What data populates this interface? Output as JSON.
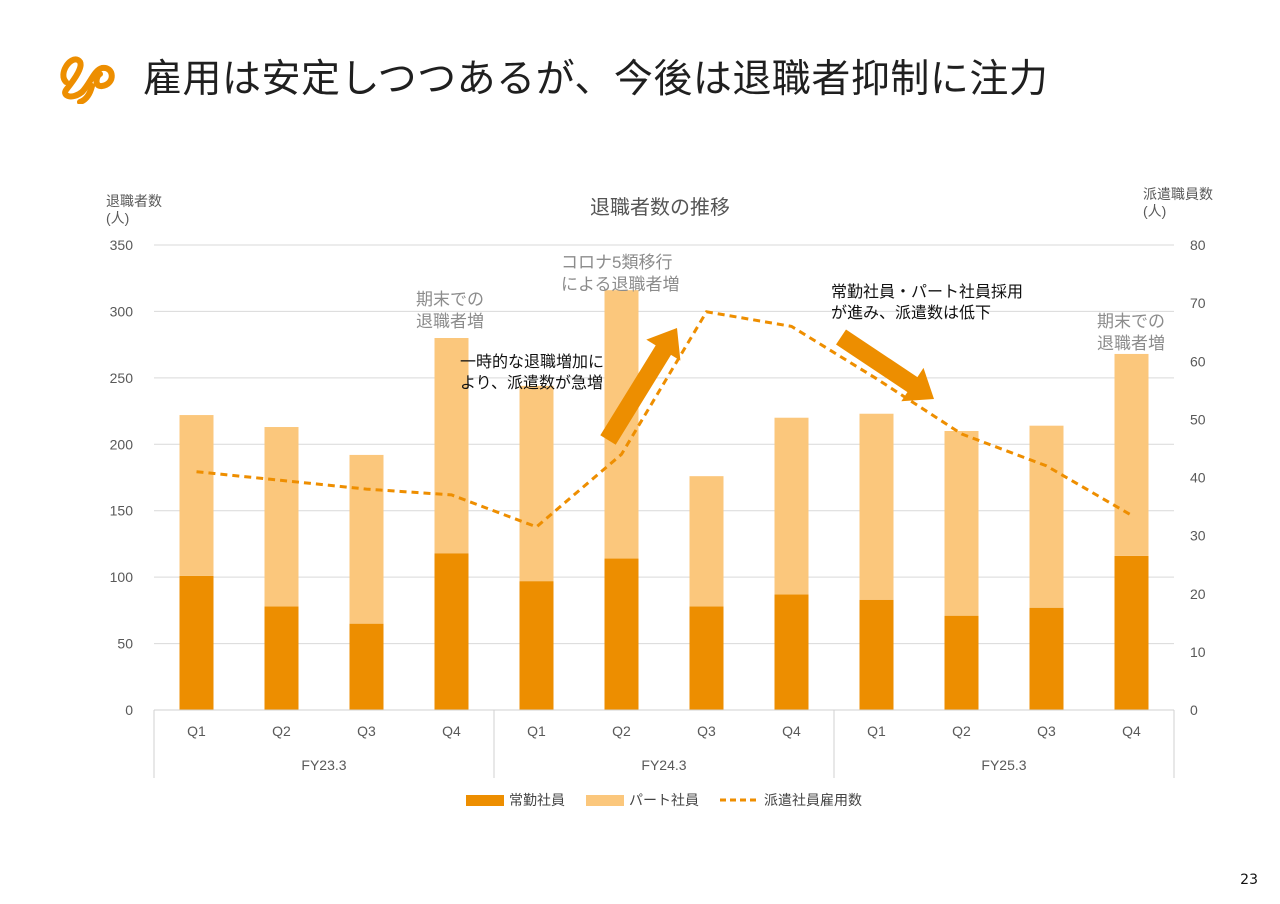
{
  "slide": {
    "title": "雇用は安定しつつあるが、今後は退職者抑制に注力",
    "page_number": "23"
  },
  "colors": {
    "full_time": "#ED8E00",
    "part_time": "#FBC77C",
    "dispatch": "#EE8E00",
    "gridline": "#d9d9d9",
    "axis_text": "#595959",
    "annotation_gray": "#8c8c8c",
    "arrow": "#ED8E00"
  },
  "chart_data": {
    "type": "bar",
    "stacked": true,
    "title": "退職者数の推移",
    "ylabel_left": [
      "退職者数",
      "(人)"
    ],
    "ylabel_right": [
      "派遣職員数",
      "(人)"
    ],
    "ylim_left": [
      0,
      350
    ],
    "yticks_left": [
      "0",
      "50",
      "100",
      "150",
      "200",
      "250",
      "300",
      "350"
    ],
    "ylim_right": [
      0,
      80
    ],
    "yticks_right": [
      "0",
      "10",
      "20",
      "30",
      "40",
      "50",
      "60",
      "70",
      "80"
    ],
    "grid": true,
    "categories": [
      "Q1",
      "Q2",
      "Q3",
      "Q4",
      "Q1",
      "Q2",
      "Q3",
      "Q4",
      "Q1",
      "Q2",
      "Q3",
      "Q4"
    ],
    "groups": [
      {
        "label": "FY23.3",
        "span": 4
      },
      {
        "label": "FY24.3",
        "span": 4
      },
      {
        "label": "FY25.3",
        "span": 4
      }
    ],
    "series": [
      {
        "name": "常勤社員",
        "kind": "bar",
        "axis": "left",
        "values": [
          101,
          78,
          65,
          118,
          97,
          114,
          78,
          87,
          83,
          71,
          77,
          116
        ]
      },
      {
        "name": "パート社員",
        "kind": "bar",
        "axis": "left",
        "values": [
          121,
          135,
          127,
          162,
          147,
          202,
          98,
          133,
          140,
          139,
          137,
          152
        ]
      },
      {
        "name": "派遣社員雇用数",
        "kind": "line",
        "style": "dashed",
        "axis": "right",
        "values": [
          41,
          39.5,
          38,
          37,
          31.5,
          44,
          68.5,
          66,
          57,
          47.5,
          42,
          33.5
        ]
      }
    ],
    "legend_position": "bottom",
    "annotations": [
      {
        "text": [
          "期末での",
          "退職者増"
        ],
        "color": "gray"
      },
      {
        "text": [
          "コロナ5類移行",
          "による退職者増"
        ],
        "color": "gray"
      },
      {
        "text": [
          "一時的な退職増加に",
          "より、派遣数が急増"
        ],
        "color": "black"
      },
      {
        "text": [
          "常勤社員・パート社員採用",
          "が進み、派遣数は低下"
        ],
        "color": "black"
      },
      {
        "text": [
          "期末での",
          "退職者増"
        ],
        "color": "gray"
      }
    ]
  }
}
